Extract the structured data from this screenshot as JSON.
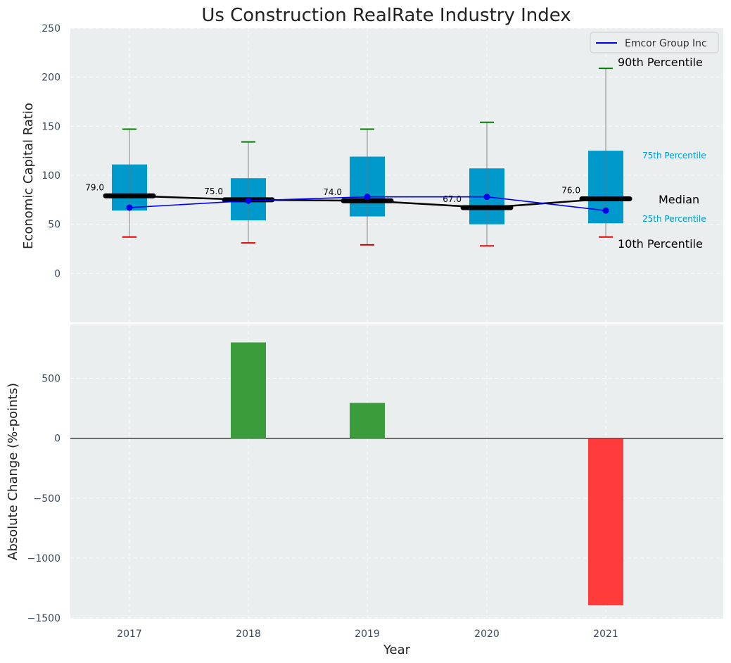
{
  "chart_data": [
    {
      "type": "box",
      "title": "Us Construction RealRate Industry Index",
      "xlabel": "",
      "ylabel": "Economic Capital Ratio",
      "ylim": [
        -50,
        250
      ],
      "yticks": [
        0,
        50,
        100,
        150,
        200,
        250
      ],
      "categories": [
        "2017",
        "2018",
        "2019",
        "2020",
        "2021"
      ],
      "p10": [
        37,
        31,
        29,
        28,
        37
      ],
      "p25": [
        64,
        54,
        58,
        50,
        51
      ],
      "median": [
        79,
        75,
        74,
        67,
        76
      ],
      "p75": [
        111,
        97,
        119,
        107,
        125
      ],
      "p90": [
        147,
        134,
        147,
        154,
        209
      ],
      "median_labels": [
        "79.0",
        "75.0",
        "74.0",
        "67.0",
        "76.0"
      ],
      "series": [
        {
          "name": "Emcor Group Inc",
          "values": [
            67,
            74,
            78,
            78,
            64
          ],
          "color": "#0000ee"
        }
      ],
      "legend": {
        "position": "top-right",
        "entries": [
          "Emcor Group Inc"
        ]
      },
      "annotations": {
        "p90": "90th Percentile",
        "p75": "75th Percentile",
        "median": "Median",
        "p25": "25th Percentile",
        "p10": "10th Percentile"
      },
      "colors": {
        "box": "#0099cc",
        "whisker_top": "#008000",
        "whisker_bottom": "#dd0000",
        "median": "#000000",
        "background": "#eaeeee"
      }
    },
    {
      "type": "bar",
      "title": "",
      "xlabel": "Year",
      "ylabel": "Absolute Change (%-points)",
      "ylim": [
        -1500,
        950
      ],
      "yticks": [
        -1500,
        -1000,
        -500,
        0,
        500
      ],
      "ytick_labels": [
        "−1500",
        "−1000",
        "−500",
        "0",
        "500"
      ],
      "categories": [
        "2017",
        "2018",
        "2019",
        "2020",
        "2021"
      ],
      "values": [
        0,
        800,
        295,
        0,
        -1395
      ],
      "colors": {
        "positive": "#3a9c3a",
        "negative": "#ff3b3b",
        "background": "#eaeeee"
      }
    }
  ]
}
